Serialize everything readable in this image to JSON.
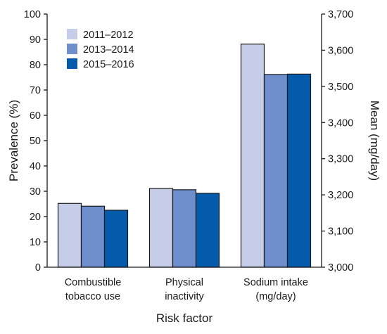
{
  "chart_data": {
    "type": "bar",
    "title": "",
    "xlabel": "Risk factor",
    "ylabel": "Prevalence (%)",
    "y2label": "Mean (mg/day)",
    "ylim": [
      0,
      100
    ],
    "y2lim": [
      3000,
      3700
    ],
    "yticks": [
      "0",
      "10",
      "20",
      "30",
      "40",
      "50",
      "60",
      "70",
      "80",
      "90",
      "100"
    ],
    "y2ticks": [
      "3,000",
      "3,100",
      "3,200",
      "3,300",
      "3,400",
      "3,500",
      "3,600",
      "3,700"
    ],
    "categories": [
      [
        "Combustible",
        "tobacco use"
      ],
      [
        "Physical",
        "inactivity"
      ],
      [
        "Sodium intake",
        "(mg/day)"
      ]
    ],
    "axis_per_category": [
      "left",
      "left",
      "right"
    ],
    "series": [
      {
        "name": "2011–2012",
        "color": "#c5cde8",
        "values": [
          25.2,
          31.1,
          3617
        ]
      },
      {
        "name": "2013–2014",
        "color": "#6e8fcb",
        "values": [
          24.1,
          30.6,
          3533
        ]
      },
      {
        "name": "2015–2016",
        "color": "#045bab",
        "values": [
          22.5,
          29.2,
          3534
        ]
      }
    ],
    "legend": "top-left",
    "grid": false
  }
}
